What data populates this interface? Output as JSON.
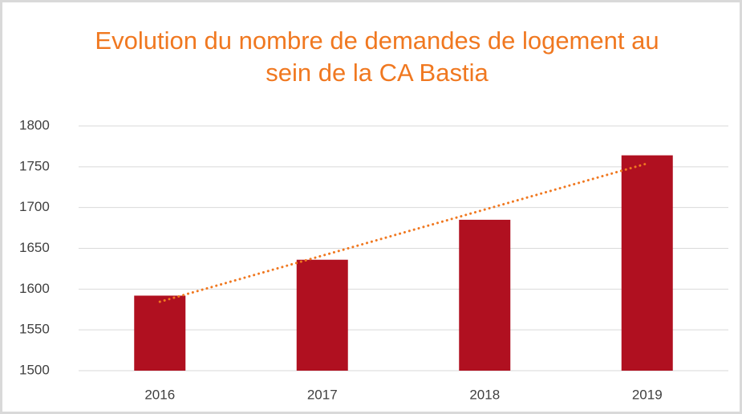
{
  "chart_data": {
    "type": "bar",
    "title": [
      "Evolution du nombre de demandes de logement au",
      "sein de la CA Bastia"
    ],
    "categories": [
      "2016",
      "2017",
      "2018",
      "2019"
    ],
    "values": [
      1592,
      1636,
      1685,
      1764
    ],
    "color": "#b01020",
    "trendline": true,
    "trendline_color": "#f07820",
    "ylim": [
      1500,
      1800
    ],
    "yticks": [
      1500,
      1550,
      1600,
      1650,
      1700,
      1750,
      1800
    ],
    "grid": true
  }
}
